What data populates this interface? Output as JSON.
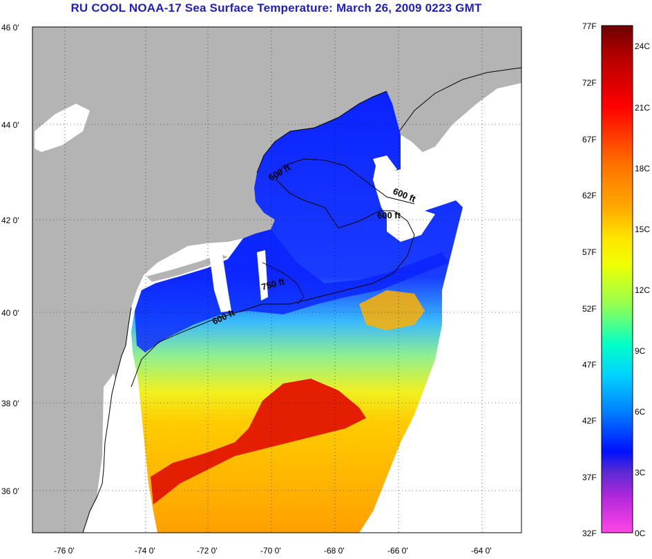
{
  "title": "RU COOL  NOAA-17  Sea Surface Temperature:  March 26, 2009 0223 GMT",
  "map": {
    "lon_range": [
      -77,
      -63
    ],
    "lat_range": [
      35,
      46
    ],
    "lat_labels": [
      "46 0'",
      "44 0'",
      "42 0'",
      "40 0'",
      "38 0'",
      "36 0'"
    ],
    "lon_labels": [
      "-76 0'",
      "-74 0'",
      "-72 0'",
      "-70 0'",
      "-68 0'",
      "-66 0'",
      "-64 0'"
    ],
    "contour_labels": [
      "600 ft",
      "600 ft",
      "600 ft",
      "750 ft",
      "600 ft"
    ],
    "colors": {
      "land": "#b4b4b4",
      "no_data": "#ffffff",
      "contour": "#000000"
    }
  },
  "colorbar": {
    "fahrenheit_labels": [
      "77F",
      "72F",
      "67F",
      "62F",
      "57F",
      "52F",
      "47F",
      "42F",
      "37F",
      "32F"
    ],
    "celsius_labels": [
      "24C",
      "21C",
      "18C",
      "15C",
      "12C",
      "9C",
      "6C",
      "3C",
      "0C"
    ],
    "range_f": [
      32,
      77
    ],
    "colors_top_to_bottom": [
      "#7a0000",
      "#c80000",
      "#ff0000",
      "#ff7800",
      "#ffc800",
      "#ffff00",
      "#a0ff40",
      "#00ffc8",
      "#00c8ff",
      "#0064ff",
      "#0000ff",
      "#8a2be2",
      "#ff00ff"
    ]
  }
}
